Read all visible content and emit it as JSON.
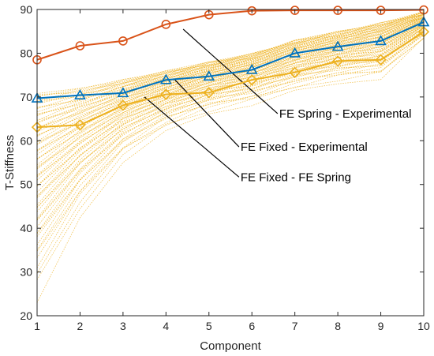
{
  "chart_data": {
    "type": "line",
    "title": "",
    "xlabel": "Component",
    "ylabel": "T-Stiffness",
    "xlim": [
      1,
      10
    ],
    "ylim": [
      20,
      90
    ],
    "x": [
      1,
      2,
      3,
      4,
      5,
      6,
      7,
      8,
      9,
      10
    ],
    "xticks": [
      "1",
      "2",
      "3",
      "4",
      "5",
      "6",
      "7",
      "8",
      "9",
      "10"
    ],
    "yticks": [
      "20",
      "30",
      "40",
      "50",
      "60",
      "70",
      "80",
      "90"
    ],
    "grid": false,
    "series": [
      {
        "values": [
          78.5,
          81.7,
          82.8,
          86.6,
          88.8,
          89.7,
          89.8,
          89.8,
          89.8,
          89.9
        ],
        "color": "#D95319",
        "marker": "circle"
      },
      {
        "values": [
          69.7,
          70.4,
          70.9,
          73.9,
          74.7,
          76.2,
          80.0,
          81.5,
          82.8,
          87.1
        ],
        "color": "#0072BD",
        "marker": "triangle"
      },
      {
        "values": [
          63.1,
          63.6,
          68.1,
          70.6,
          71.0,
          73.9,
          75.6,
          78.2,
          78.5,
          84.9
        ],
        "color": "#EDB120",
        "marker": "diamond"
      }
    ],
    "simulation_band": {
      "color": "#EDB120",
      "style": "dotted",
      "lower": [
        23,
        42,
        55,
        62,
        66,
        68,
        71,
        73,
        74,
        83
      ],
      "upper": [
        71,
        72,
        74,
        76,
        78,
        80,
        83,
        85,
        87,
        89.5
      ]
    },
    "annotations": [
      {
        "text": "FE Spring - Experimental",
        "from": [
          4.4,
          85.5
        ],
        "to": [
          6.6,
          66.2
        ]
      },
      {
        "text": "FE Fixed - Experimental",
        "from": [
          4.2,
          74.0
        ],
        "to": [
          5.7,
          58.6
        ]
      },
      {
        "text": "FE Fixed - FE Spring",
        "from": [
          3.5,
          70.0
        ],
        "to": [
          5.7,
          51.7
        ]
      }
    ]
  }
}
